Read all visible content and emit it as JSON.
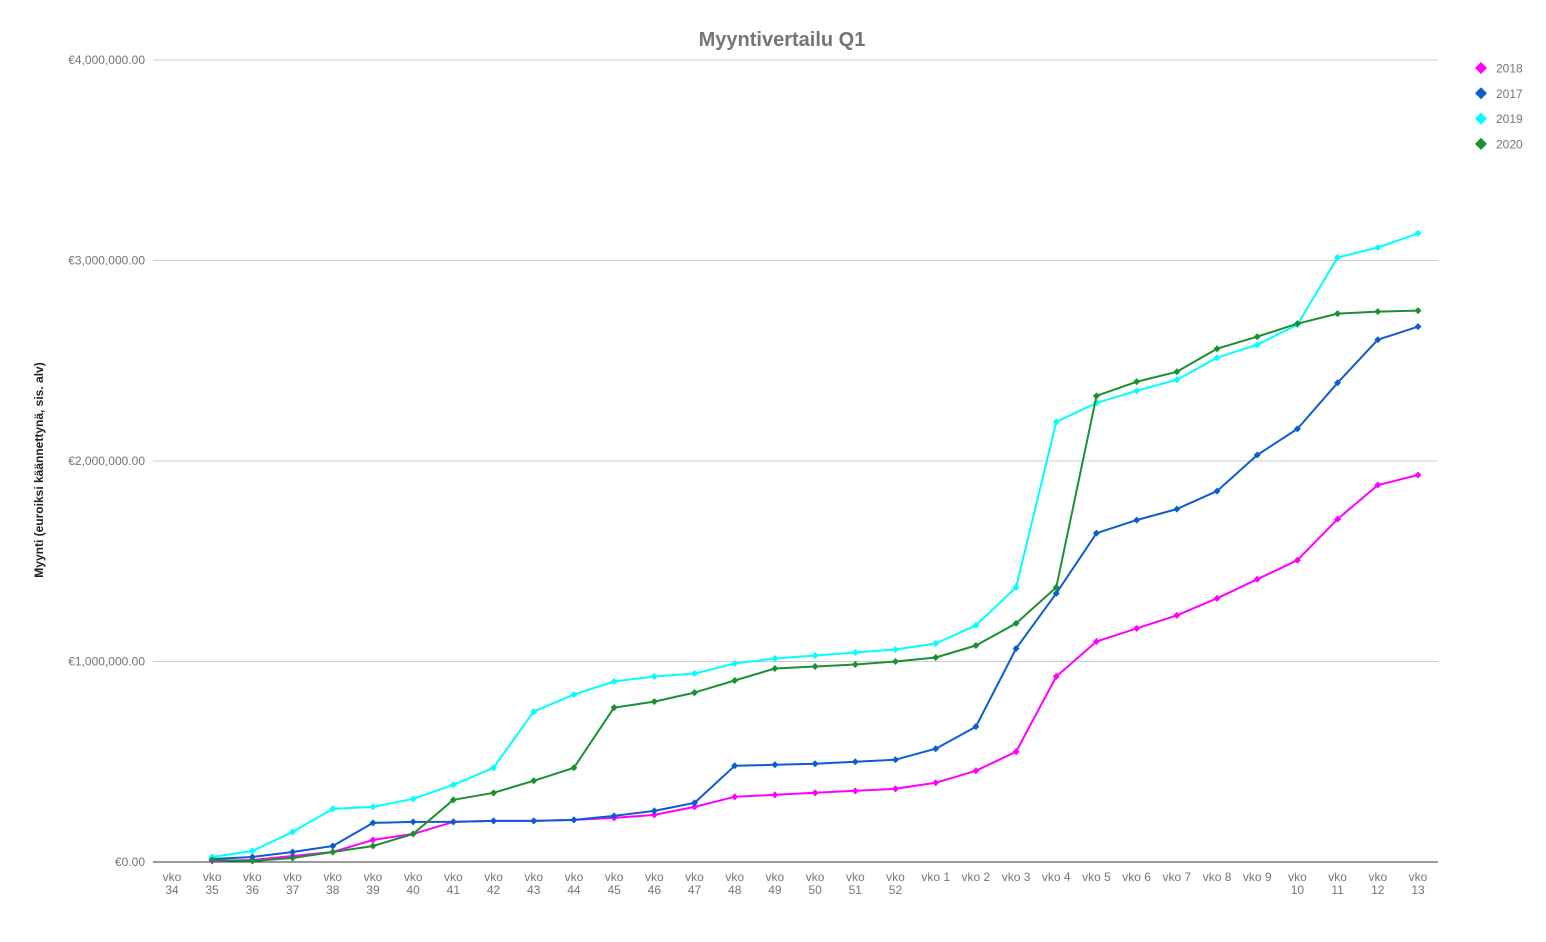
{
  "chart_data": {
    "type": "line",
    "title": "Myyntivertailu Q1",
    "xlabel": "",
    "ylabel": "Myynti (euroiksi käännettynä, sis. alv)",
    "ylim": [
      0,
      4000000
    ],
    "yticks": [
      0,
      1000000,
      2000000,
      3000000,
      4000000
    ],
    "ytick_labels": [
      "€0.00",
      "€1,000,000.00",
      "€2,000,000.00",
      "€3,000,000.00",
      "€4,000,000.00"
    ],
    "grid": true,
    "legend_position": "right",
    "categories": [
      "vko 34",
      "vko 35",
      "vko 36",
      "vko 37",
      "vko 38",
      "vko 39",
      "vko 40",
      "vko 41",
      "vko 42",
      "vko 43",
      "vko 44",
      "vko 45",
      "vko 46",
      "vko 47",
      "vko 48",
      "vko 49",
      "vko 50",
      "vko 51",
      "vko 52",
      "vko 1",
      "vko 2",
      "vko 3",
      "vko 4",
      "vko 5",
      "vko 6",
      "vko 7",
      "vko 8",
      "vko 9",
      "vko 10",
      "vko 11",
      "vko 12",
      "vko 13"
    ],
    "series": [
      {
        "name": "2018",
        "color": "#ff00ff",
        "values": [
          null,
          5000,
          10000,
          30000,
          50000,
          110000,
          140000,
          200000,
          205000,
          205000,
          210000,
          220000,
          235000,
          275000,
          325000,
          335000,
          345000,
          355000,
          365000,
          395000,
          455000,
          550000,
          925000,
          1100000,
          1165000,
          1230000,
          1315000,
          1410000,
          1505000,
          1710000,
          1880000,
          1930000
        ]
      },
      {
        "name": "2017",
        "color": "#0b5dd1",
        "values": [
          null,
          15000,
          25000,
          50000,
          80000,
          195000,
          200000,
          200000,
          205000,
          205000,
          210000,
          230000,
          255000,
          295000,
          480000,
          485000,
          490000,
          500000,
          510000,
          565000,
          675000,
          1065000,
          1340000,
          1640000,
          1705000,
          1760000,
          1850000,
          2030000,
          2160000,
          2390000,
          2605000,
          2670000
        ]
      },
      {
        "name": "2019",
        "color": "#00ffff",
        "values": [
          null,
          25000,
          55000,
          150000,
          265000,
          275000,
          315000,
          385000,
          470000,
          750000,
          835000,
          900000,
          925000,
          940000,
          990000,
          1015000,
          1030000,
          1045000,
          1060000,
          1090000,
          1180000,
          1370000,
          2195000,
          2290000,
          2350000,
          2405000,
          2515000,
          2580000,
          2680000,
          3015000,
          3065000,
          3135000
        ]
      },
      {
        "name": "2020",
        "color": "#1a9131",
        "values": [
          null,
          10000,
          5000,
          20000,
          50000,
          80000,
          140000,
          310000,
          345000,
          405000,
          470000,
          770000,
          800000,
          845000,
          905000,
          965000,
          975000,
          985000,
          1000000,
          1020000,
          1080000,
          1190000,
          1370000,
          2325000,
          2395000,
          2445000,
          2560000,
          2620000,
          2685000,
          2735000,
          2745000,
          2750000
        ]
      }
    ]
  },
  "legend": {
    "items": [
      {
        "label": "2018",
        "color": "#ff00ff"
      },
      {
        "label": "2017",
        "color": "#0b5dd1"
      },
      {
        "label": "2019",
        "color": "#00ffff"
      },
      {
        "label": "2020",
        "color": "#1a9131"
      }
    ]
  }
}
